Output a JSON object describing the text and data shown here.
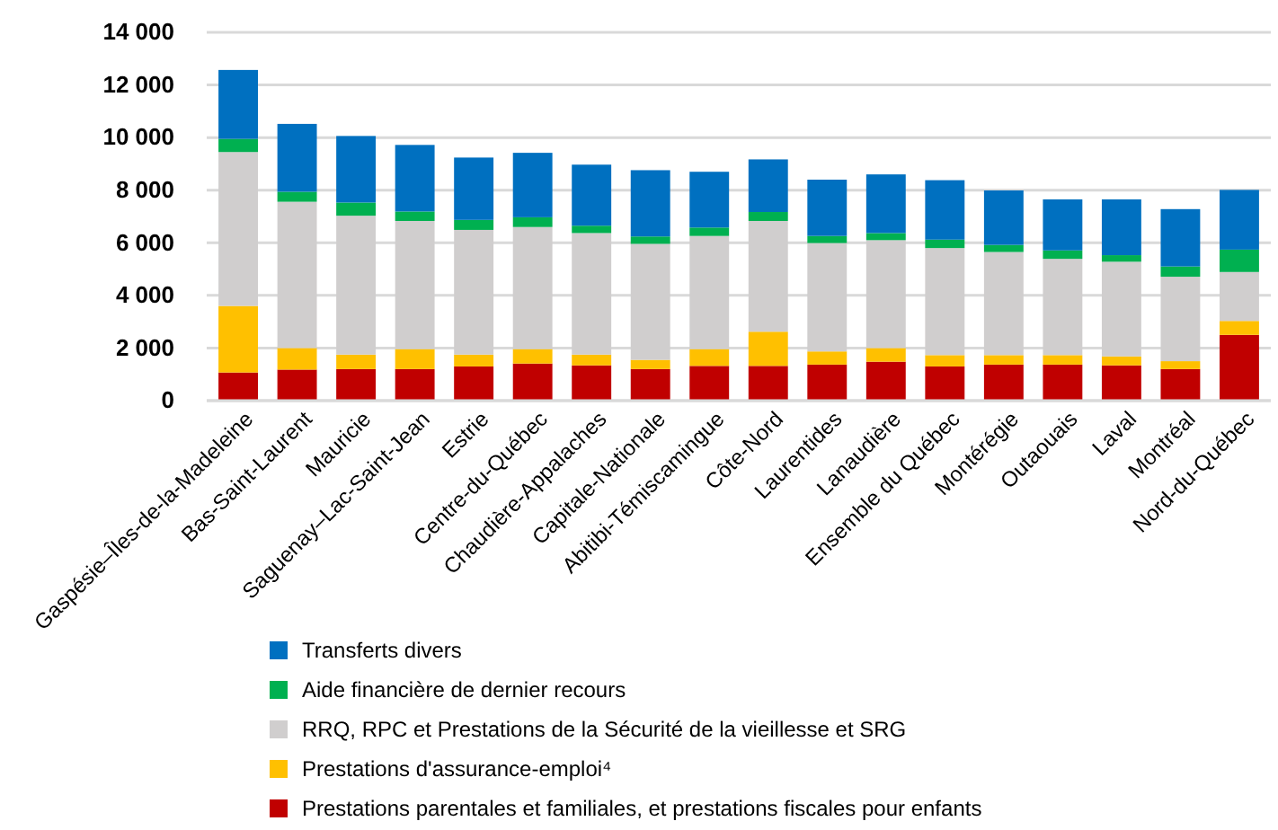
{
  "chart_data": {
    "type": "bar",
    "stacked": true,
    "grid": "y",
    "legend": "bottom",
    "categories": [
      "Gaspésie–Îles-de-la-Madeleine",
      "Bas-Saint-Laurent",
      "Mauricie",
      "Saguenay–Lac-Saint-Jean",
      "Estrie",
      "Centre-du-Québec",
      "Chaudière-Appalaches",
      "Capitale-Nationale",
      "Abitibi-Témiscamingue",
      "Côte-Nord",
      "Laurentides",
      "Lanaudière",
      "Ensemble du Québec",
      "Montérégie",
      "Outaouais",
      "Laval",
      "Montréal",
      "Nord-du-Québec"
    ],
    "ylim": [
      0,
      14000
    ],
    "yticks": [
      0,
      {
        "value": 2000,
        "label": "2 000"
      },
      {
        "value": 4000,
        "label": "4 000"
      },
      {
        "value": 6000,
        "label": "6 000"
      },
      {
        "value": 8000,
        "label": "8 000"
      },
      {
        "value": 10000,
        "label": "10 000"
      },
      {
        "value": 12000,
        "label": "12 000"
      },
      {
        "value": 14000,
        "label": "14 000"
      }
    ],
    "series": [
      {
        "name": "Prestations parentales et familiales, et prestations fiscales pour enfants",
        "color": "#c00000",
        "values": [
          1070,
          1180,
          1200,
          1200,
          1300,
          1410,
          1340,
          1200,
          1320,
          1320,
          1370,
          1480,
          1300,
          1370,
          1370,
          1340,
          1200,
          2500
        ]
      },
      {
        "name": "Prestations d'assurance-emploi⁴",
        "color": "#ffc000",
        "values": [
          2530,
          820,
          550,
          760,
          450,
          550,
          410,
          350,
          640,
          1300,
          500,
          520,
          430,
          360,
          360,
          340,
          300,
          530
        ]
      },
      {
        "name": "RRQ, RPC et Prestations de la Sécurité de la vieillesse et SRG",
        "color": "#d0cece",
        "values": [
          5850,
          5560,
          5280,
          4870,
          4740,
          4640,
          4620,
          4410,
          4300,
          4210,
          4120,
          4100,
          4070,
          3920,
          3660,
          3600,
          3210,
          1860
        ]
      },
      {
        "name": "Aide financière de dernier recours",
        "color": "#00b050",
        "values": [
          500,
          380,
          500,
          360,
          380,
          370,
          280,
          280,
          320,
          340,
          270,
          270,
          320,
          270,
          320,
          250,
          390,
          850
        ]
      },
      {
        "name": "Transferts divers",
        "color": "#0070c0",
        "values": [
          2620,
          2580,
          2530,
          2530,
          2370,
          2450,
          2320,
          2520,
          2120,
          2000,
          2140,
          2230,
          2260,
          2070,
          1940,
          2120,
          2180,
          2270
        ]
      }
    ]
  }
}
